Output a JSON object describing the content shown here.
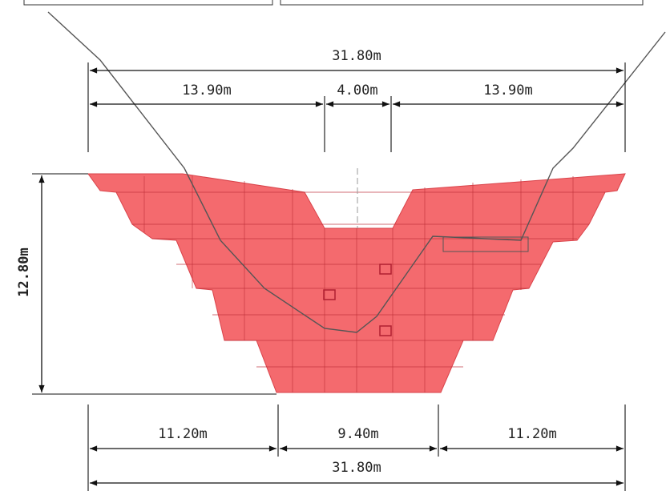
{
  "dimensions": {
    "top_total": "31.80m",
    "top_left": "13.90m",
    "top_center": "4.00m",
    "top_right": "13.90m",
    "height": "12.80m",
    "bottom_left": "11.20m",
    "bottom_center": "9.40m",
    "bottom_right": "11.20m",
    "bottom_total": "31.80m"
  }
}
